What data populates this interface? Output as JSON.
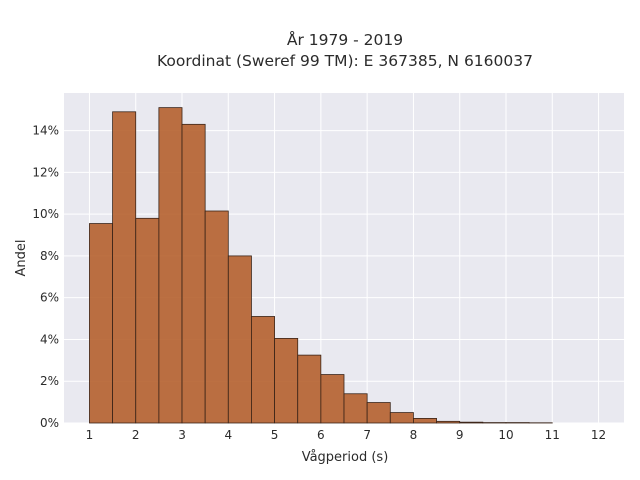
{
  "chart_data": {
    "type": "bar",
    "title_line1": "År 1979 - 2019",
    "title_line2": "Koordinat (Sweref 99 TM): E 367385, N 6160037",
    "xlabel": "Vågperiod (s)",
    "ylabel": "Andel",
    "xlim": [
      0.45,
      12.55
    ],
    "ylim": [
      0,
      0.158
    ],
    "x_ticks": [
      1,
      2,
      3,
      4,
      5,
      6,
      7,
      8,
      9,
      10,
      11,
      12
    ],
    "x_tick_labels": [
      "1",
      "2",
      "3",
      "4",
      "5",
      "6",
      "7",
      "8",
      "9",
      "10",
      "11",
      "12"
    ],
    "y_ticks": [
      0,
      0.02,
      0.04,
      0.06,
      0.08,
      0.1,
      0.12,
      0.14
    ],
    "y_tick_labels": [
      "0%",
      "2%",
      "4%",
      "6%",
      "8%",
      "10%",
      "12%",
      "14%"
    ],
    "bin_width": 0.5,
    "bins": [
      {
        "start": 1.0,
        "value": 0.0955
      },
      {
        "start": 1.5,
        "value": 0.149
      },
      {
        "start": 2.0,
        "value": 0.098
      },
      {
        "start": 2.5,
        "value": 0.151
      },
      {
        "start": 3.0,
        "value": 0.143
      },
      {
        "start": 3.5,
        "value": 0.1015
      },
      {
        "start": 4.0,
        "value": 0.08
      },
      {
        "start": 4.5,
        "value": 0.051
      },
      {
        "start": 5.0,
        "value": 0.0405
      },
      {
        "start": 5.5,
        "value": 0.0325
      },
      {
        "start": 6.0,
        "value": 0.0232
      },
      {
        "start": 6.5,
        "value": 0.014
      },
      {
        "start": 7.0,
        "value": 0.0098
      },
      {
        "start": 7.5,
        "value": 0.005
      },
      {
        "start": 8.0,
        "value": 0.0022
      },
      {
        "start": 8.5,
        "value": 0.0008
      },
      {
        "start": 9.0,
        "value": 0.0004
      },
      {
        "start": 9.5,
        "value": 0.0002
      },
      {
        "start": 10.0,
        "value": 0.0002
      },
      {
        "start": 10.5,
        "value": 0.0001
      }
    ],
    "grid": true,
    "colors": {
      "bar_fill": "#b5602e",
      "bar_edge": "#3a2418",
      "plot_background": "#e9e9f0",
      "grid": "#ffffff"
    }
  }
}
